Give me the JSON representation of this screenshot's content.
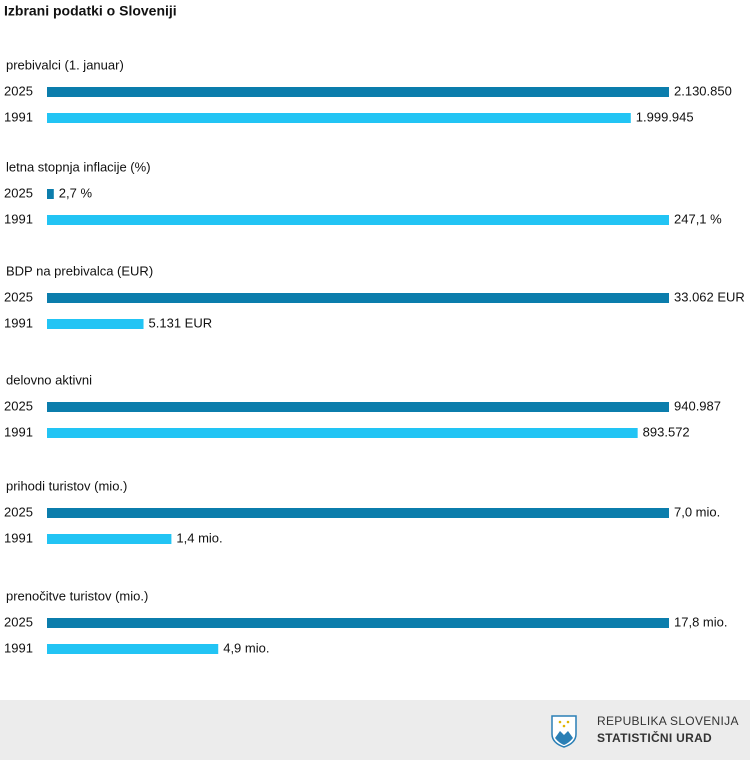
{
  "title": "Izbrani podatki o Sloveniji",
  "chart_data": [
    {
      "type": "bar",
      "title": "prebivalci (1. januar)",
      "categories": [
        "2025",
        "1991"
      ],
      "values": [
        2130850,
        1999945
      ],
      "value_labels": [
        "2.130.850",
        "1.999.945"
      ],
      "colors": [
        "#0b7dac",
        "#22c4f4"
      ]
    },
    {
      "type": "bar",
      "title": "letna stopnja inflacije (%)",
      "categories": [
        "2025",
        "1991"
      ],
      "values": [
        2.7,
        247.1
      ],
      "value_labels": [
        "2,7 %",
        "247,1 %"
      ],
      "colors": [
        "#0b7dac",
        "#22c4f4"
      ]
    },
    {
      "type": "bar",
      "title": "BDP na prebivalca (EUR)",
      "categories": [
        "2025",
        "1991"
      ],
      "values": [
        33062,
        5131
      ],
      "value_labels": [
        "33.062 EUR",
        "5.131 EUR"
      ],
      "colors": [
        "#0b7dac",
        "#22c4f4"
      ]
    },
    {
      "type": "bar",
      "title": "delovno aktivni",
      "categories": [
        "2025",
        "1991"
      ],
      "values": [
        940987,
        893572
      ],
      "value_labels": [
        "940.987",
        "893.572"
      ],
      "colors": [
        "#0b7dac",
        "#22c4f4"
      ]
    },
    {
      "type": "bar",
      "title": "prihodi turistov (mio.)",
      "categories": [
        "2025",
        "1991"
      ],
      "values": [
        7.0,
        1.4
      ],
      "value_labels": [
        "7,0 mio.",
        "1,4 mio."
      ],
      "colors": [
        "#0b7dac",
        "#22c4f4"
      ]
    },
    {
      "type": "bar",
      "title": "prenočitve turistov (mio.)",
      "categories": [
        "2025",
        "1991"
      ],
      "values": [
        17.8,
        4.9
      ],
      "value_labels": [
        "17,8 mio.",
        "4,9 mio."
      ],
      "colors": [
        "#0b7dac",
        "#22c4f4"
      ]
    }
  ],
  "footer": {
    "line1": "REPUBLIKA SLOVENIJA",
    "line2": "STATISTIČNI URAD"
  }
}
